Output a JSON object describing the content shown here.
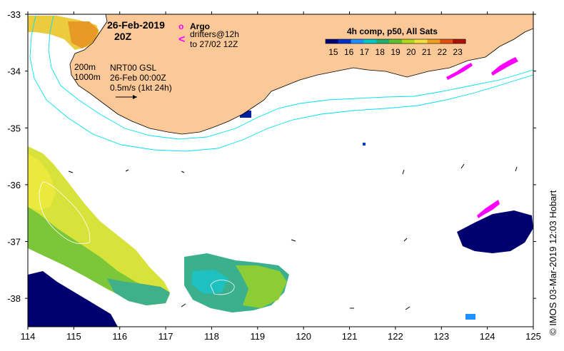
{
  "header": {
    "date": "26-Feb-2019",
    "time": "20Z"
  },
  "legend_markers": {
    "argo_symbol": "o",
    "argo_label": "Argo",
    "drifter_symbol": "<",
    "drifter_label_line1": "drifters@12h",
    "drifter_label_line2": "to 27/02 12Z"
  },
  "colorbar": {
    "title": "4h comp, p50, All Sats",
    "ticks": [
      "15",
      "16",
      "17",
      "18",
      "19",
      "20",
      "21",
      "22",
      "23"
    ],
    "min": 14.5,
    "max": 23.5,
    "colors": [
      "#00007a",
      "#0030c8",
      "#1e90ff",
      "#00c8c8",
      "#20b070",
      "#60c030",
      "#b0d820",
      "#f0e040",
      "#f0a020",
      "#e05010",
      "#b01008"
    ]
  },
  "annotations": {
    "depth_200": "200m",
    "depth_1000": "1000m",
    "product": "NRT00 GSL",
    "product_time": "26-Feb 00:00Z",
    "scale": "0.5m/s (1kt 24h)"
  },
  "axes": {
    "x_ticks": [
      "114",
      "115",
      "116",
      "117",
      "118",
      "119",
      "120",
      "121",
      "122",
      "123",
      "124",
      "125"
    ],
    "y_ticks": [
      "-33",
      "-34",
      "-35",
      "-36",
      "-37",
      "-38"
    ],
    "lon_range": [
      114,
      125
    ],
    "lat_range": [
      -38.5,
      -33
    ]
  },
  "credit": "© IMOS 03-Mar-2019 12:03 Hobart",
  "colors": {
    "land": "#fbc897",
    "isobath": "#00e0f0",
    "argo": "#ff00ff",
    "drifter": "#ff00ff"
  }
}
